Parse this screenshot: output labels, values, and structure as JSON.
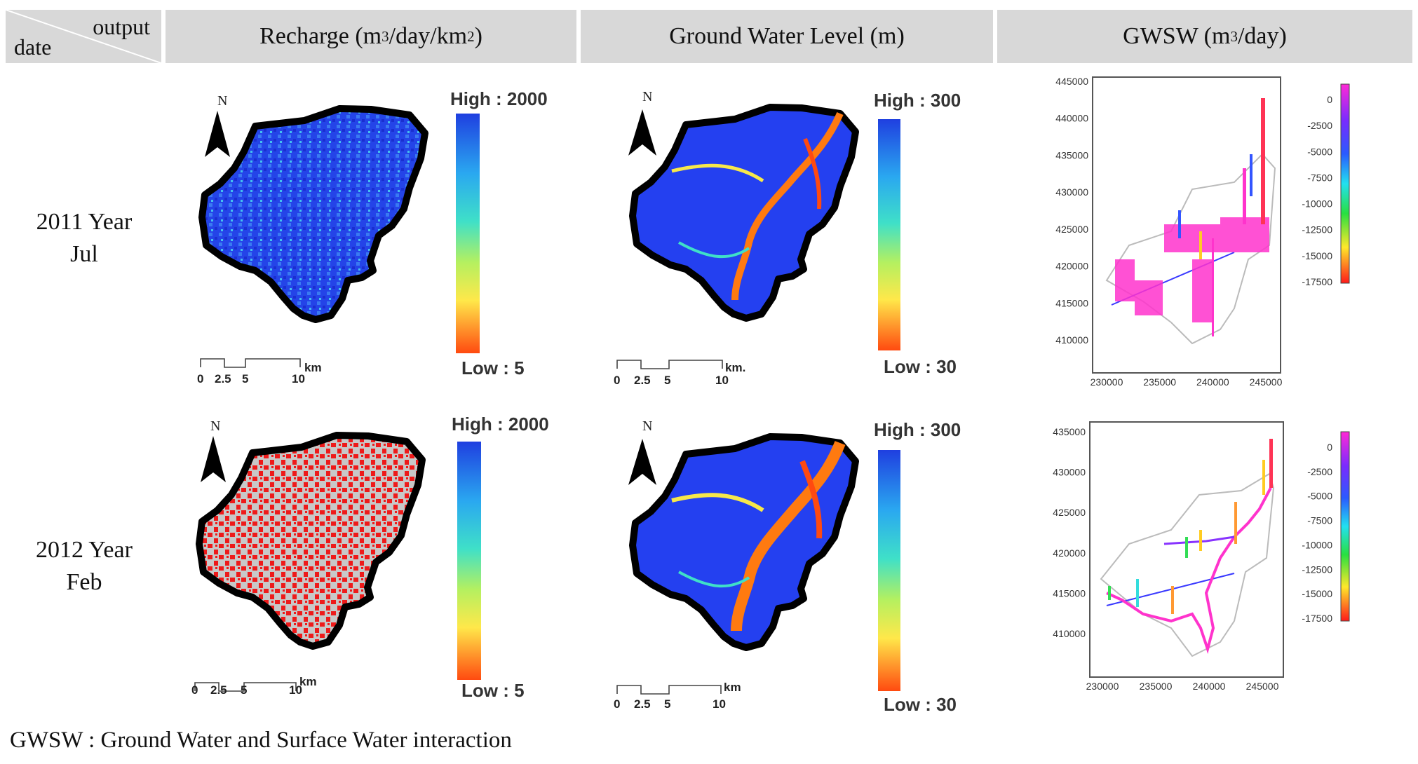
{
  "header": {
    "corner_output": "output",
    "corner_date": "date",
    "recharge_label": "Recharge (m",
    "recharge_sup1": "3",
    "recharge_mid": "/day/km",
    "recharge_sup2": "2",
    "recharge_end": ")",
    "gwl_label": "Ground Water Level (m)",
    "gwsw_label": "GWSW (m",
    "gwsw_sup": "3",
    "gwsw_end": "/day)"
  },
  "rows": [
    {
      "year": "2011 Year",
      "month": "Jul"
    },
    {
      "year": "2012 Year",
      "month": "Feb"
    }
  ],
  "maps": {
    "north": "N",
    "recharge_high": "High : 2000",
    "recharge_low": "Low : 5",
    "gwl_high": "High : 300",
    "gwl_low": "Low : 30",
    "scale_ticks": [
      "0",
      "2.5",
      "5",
      "10"
    ],
    "scale_unit": "km",
    "scale_unit_alt": "km."
  },
  "gwsw_charts": [
    {
      "y_ticks": [
        "445000",
        "440000",
        "435000",
        "430000",
        "425000",
        "420000",
        "415000",
        "410000"
      ],
      "x_ticks": [
        "230000",
        "235000",
        "240000",
        "245000"
      ],
      "colorbar_ticks": [
        "0",
        "-2500",
        "-5000",
        "-7500",
        "-10000",
        "-12500",
        "-15000",
        "-17500"
      ]
    },
    {
      "y_ticks": [
        "435000",
        "430000",
        "425000",
        "420000",
        "415000",
        "410000"
      ],
      "x_ticks": [
        "230000",
        "235000",
        "240000",
        "245000"
      ],
      "colorbar_ticks": [
        "0",
        "-2500",
        "-5000",
        "-7500",
        "-10000",
        "-12500",
        "-15000",
        "-17500"
      ]
    }
  ],
  "colors": {
    "header_bg": "#d8d8d8",
    "recharge_high": "#1f3fe0",
    "recharge_low": "#ff3b1f",
    "dry": "#c8c8c8"
  },
  "footnote": "GWSW : Ground Water and Surface Water interaction"
}
